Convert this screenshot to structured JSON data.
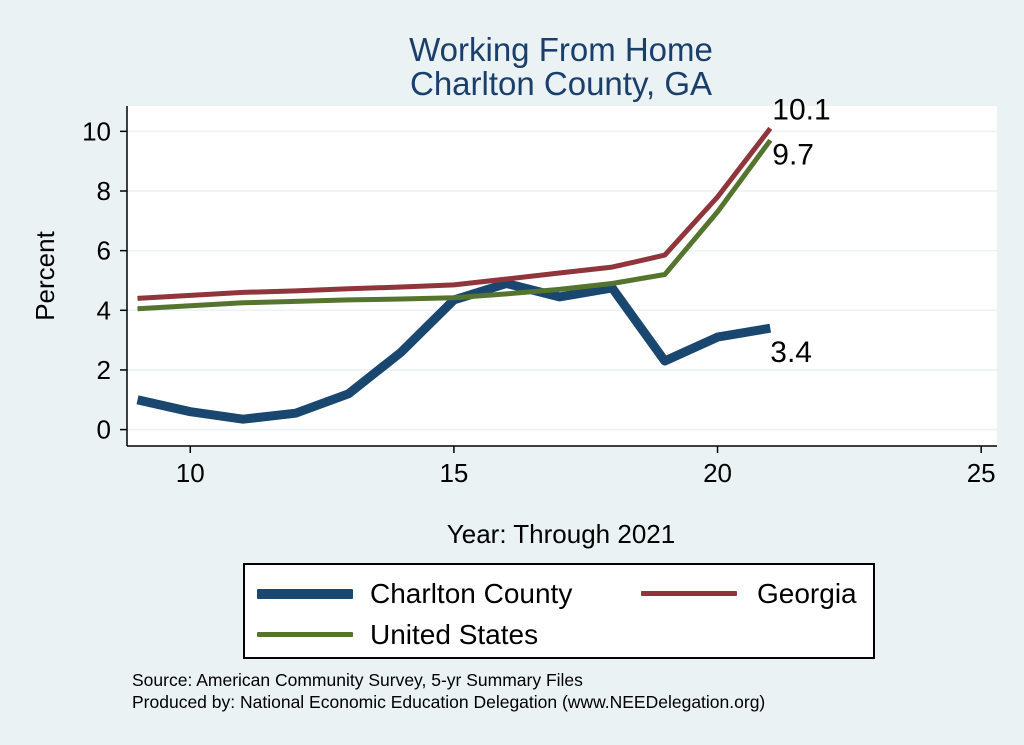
{
  "chart_data": {
    "type": "line",
    "title": [
      "Working From Home",
      "Charlton County, GA"
    ],
    "xlabel": "Year: Through 2021",
    "ylabel": "Percent",
    "xlim": [
      8.8,
      25.3
    ],
    "ylim": [
      -0.55,
      10.85
    ],
    "xticks": [
      10,
      15,
      20,
      25
    ],
    "yticks": [
      0,
      2,
      4,
      6,
      8,
      10
    ],
    "grid": true,
    "series": [
      {
        "name": "Charlton County",
        "color": "#1a476f",
        "x": [
          9,
          10,
          11,
          12,
          13,
          14,
          15,
          16,
          17,
          18,
          19,
          20,
          21
        ],
        "values": [
          1.0,
          0.6,
          0.35,
          0.55,
          1.2,
          2.6,
          4.35,
          4.9,
          4.45,
          4.75,
          2.3,
          3.1,
          3.4
        ],
        "end_label": "3.4"
      },
      {
        "name": "Georgia",
        "color": "#90353b",
        "x": [
          9,
          10,
          11,
          12,
          13,
          14,
          15,
          16,
          17,
          18,
          19,
          20,
          21
        ],
        "values": [
          4.4,
          4.5,
          4.6,
          4.65,
          4.72,
          4.78,
          4.85,
          5.05,
          5.25,
          5.45,
          5.85,
          7.8,
          10.1
        ],
        "end_label": "10.1"
      },
      {
        "name": "United States",
        "color": "#55752f",
        "x": [
          9,
          10,
          11,
          12,
          13,
          14,
          15,
          16,
          17,
          18,
          19,
          20,
          21
        ],
        "values": [
          4.05,
          4.15,
          4.25,
          4.3,
          4.35,
          4.38,
          4.42,
          4.55,
          4.7,
          4.9,
          5.2,
          7.3,
          9.7
        ],
        "end_label": "9.7"
      }
    ],
    "legend_position": "bottom"
  },
  "legend": {
    "items": [
      {
        "label": "Charlton County",
        "color": "#1a476f"
      },
      {
        "label": "Georgia",
        "color": "#90353b"
      },
      {
        "label": "United States",
        "color": "#55752f"
      }
    ]
  },
  "footer": {
    "source": "Source: American Community Survey, 5-yr Summary Files",
    "produced_by": "Produced by: National Economic Education Delegation (www.NEEDelegation.org)"
  }
}
